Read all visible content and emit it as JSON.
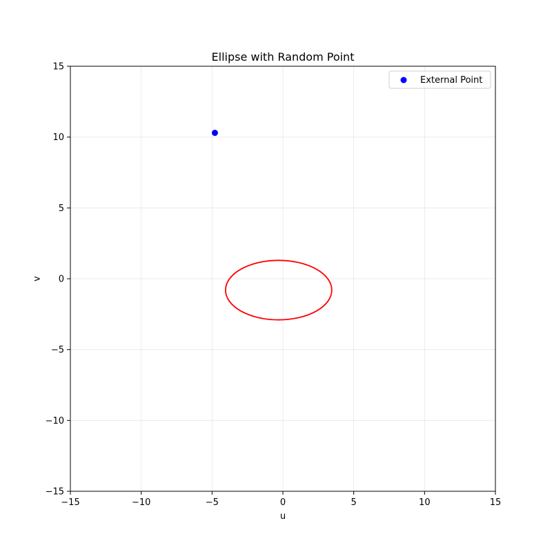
{
  "chart_data": {
    "type": "scatter",
    "title": "Ellipse with Random Point",
    "xlabel": "u",
    "ylabel": "v",
    "xlim": [
      -15,
      15
    ],
    "ylim": [
      -15,
      15
    ],
    "grid": true,
    "x_ticks": [
      -15,
      -10,
      -5,
      0,
      5,
      10,
      15
    ],
    "y_ticks": [
      -15,
      -10,
      -5,
      0,
      5,
      10,
      15
    ],
    "x_tick_labels": [
      "−15",
      "−10",
      "−5",
      "0",
      "5",
      "10",
      "15"
    ],
    "y_tick_labels": [
      "−15",
      "−10",
      "−5",
      "0",
      "5",
      "10",
      "15"
    ],
    "legend_position": "top-right",
    "ellipse": {
      "center": [
        -0.3,
        -0.8
      ],
      "semi_axis_u": 3.75,
      "semi_axis_v": 2.1,
      "rotation_deg": 0,
      "color": "#ff0000"
    },
    "series": [
      {
        "name": "External Point",
        "x": [
          -4.8
        ],
        "y": [
          10.3
        ],
        "color": "#0000ff"
      }
    ]
  }
}
